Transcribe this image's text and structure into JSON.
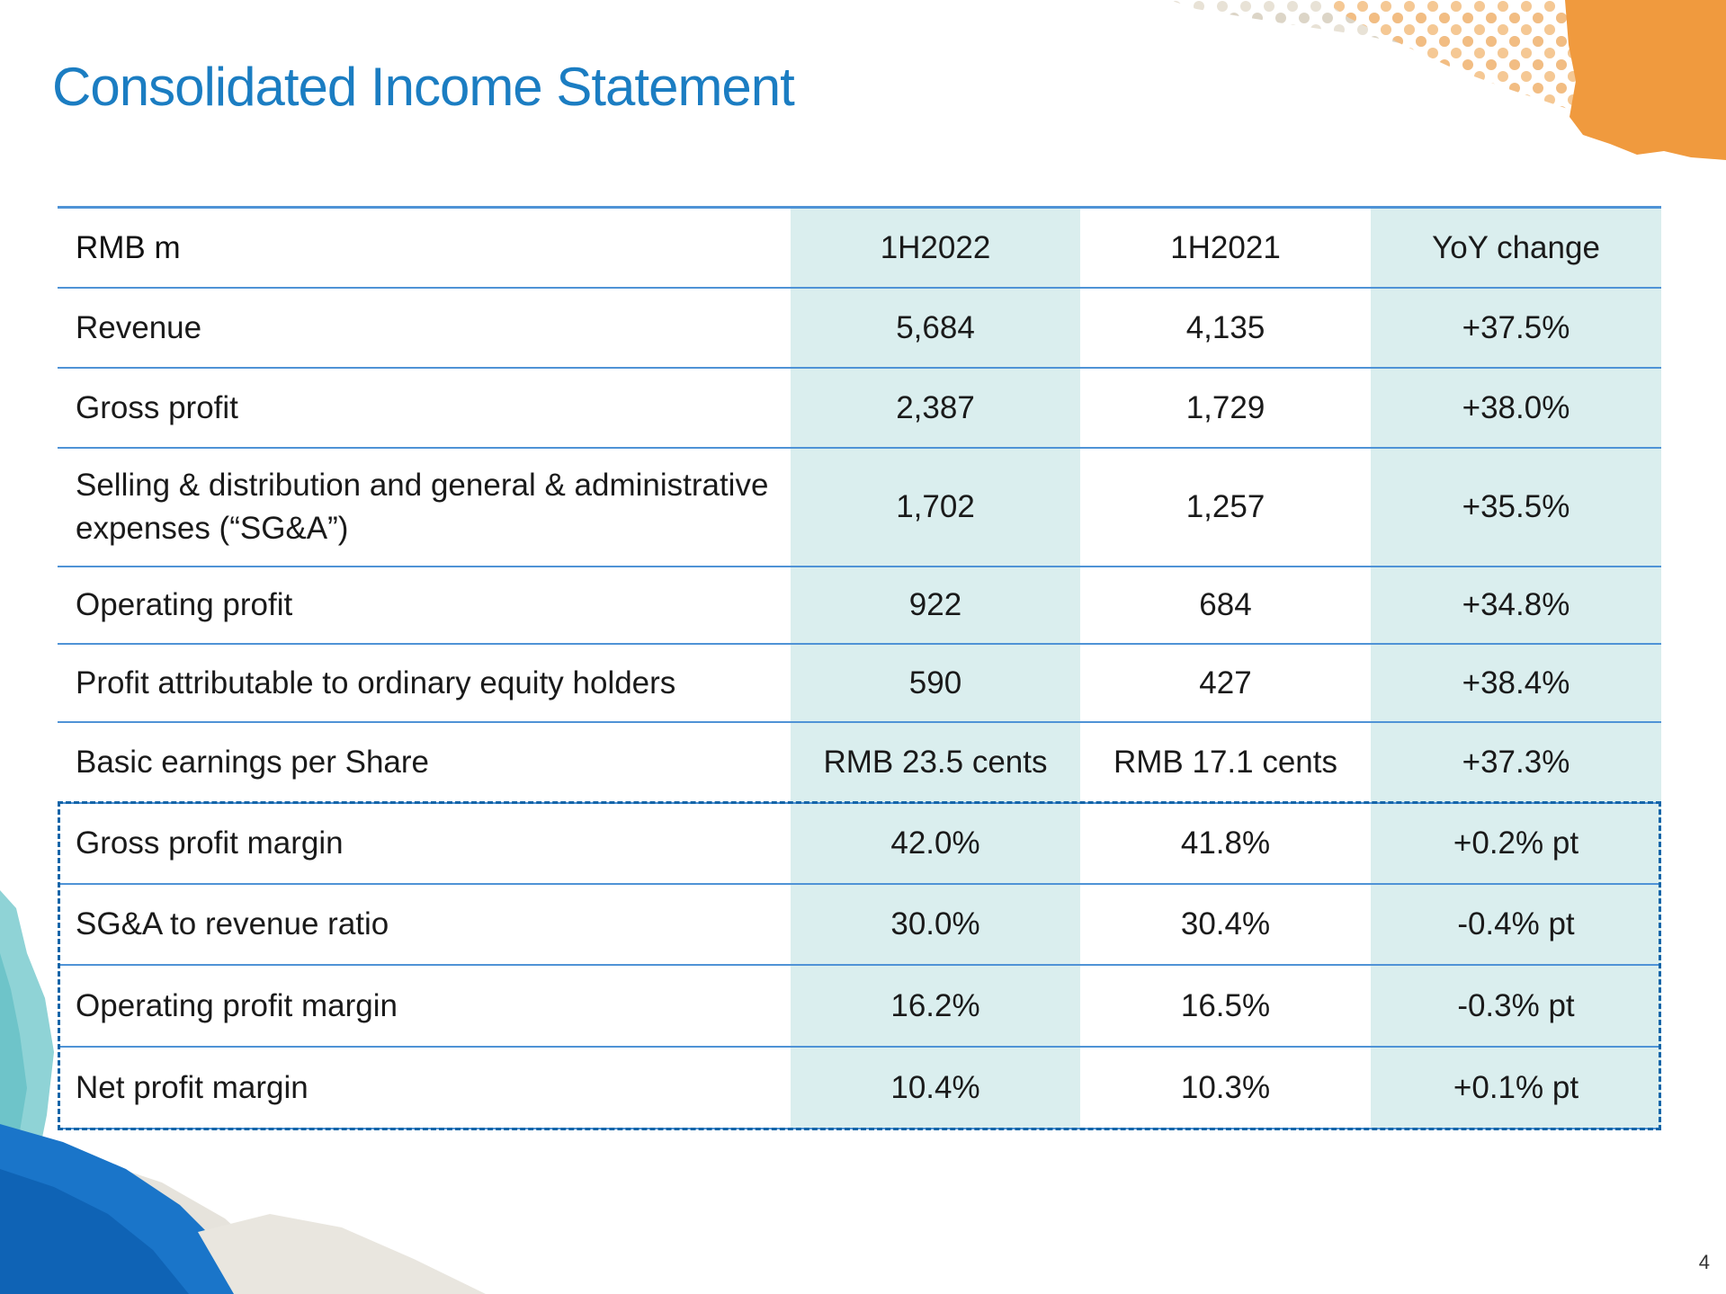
{
  "slide": {
    "title": "Consolidated Income Statement",
    "page_number": "4"
  },
  "colors": {
    "title": "#1b7dc2",
    "shade": "#daeeee",
    "rule": "#4f93d6",
    "dash": "#1565a8"
  },
  "table": {
    "headers": [
      "RMB m",
      "1H2022",
      "1H2021",
      "YoY change"
    ],
    "rows": [
      {
        "label": "Revenue",
        "cur": "5,684",
        "prev": "4,135",
        "yoy": "+37.5%"
      },
      {
        "label": "Gross profit",
        "cur": "2,387",
        "prev": "1,729",
        "yoy": "+38.0%"
      },
      {
        "label": "Selling & distribution and general & administrative expenses (“SG&A”)",
        "cur": "1,702",
        "prev": "1,257",
        "yoy": "+35.5%"
      },
      {
        "label": "Operating profit",
        "cur": "922",
        "prev": "684",
        "yoy": "+34.8%"
      },
      {
        "label": "Profit attributable to ordinary equity holders",
        "cur": "590",
        "prev": "427",
        "yoy": "+38.4%"
      },
      {
        "label": "Basic earnings per Share",
        "cur": "RMB 23.5 cents",
        "prev": "RMB 17.1 cents",
        "yoy": "+37.3%"
      },
      {
        "label": "Gross profit margin",
        "cur": "42.0%",
        "prev": "41.8%",
        "yoy": "+0.2% pt"
      },
      {
        "label": "SG&A to revenue ratio",
        "cur": "30.0%",
        "prev": "30.4%",
        "yoy": "-0.4% pt"
      },
      {
        "label": "Operating profit margin",
        "cur": "16.2%",
        "prev": "16.5%",
        "yoy": "-0.3% pt"
      },
      {
        "label": "Net profit margin",
        "cur": "10.4%",
        "prev": "10.3%",
        "yoy": "+0.1% pt"
      }
    ]
  }
}
